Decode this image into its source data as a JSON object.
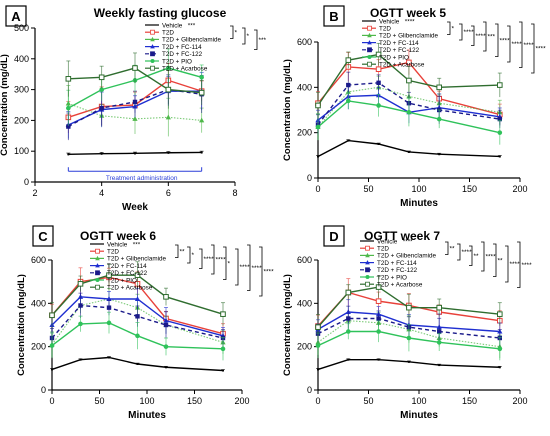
{
  "colors": {
    "Vehicle": "#000000",
    "T2D": "#e8413a",
    "T2D + Glibenclamide": "#4fb84a",
    "T2D + FC-114": "#1f2fd1",
    "T2D + FC-122": "#1a1a8a",
    "T2D + PIO": "#2fc25a",
    "T2D + Acarbose": "#2f6d2f"
  },
  "chart_data": [
    {
      "type": "line",
      "panel_letter": "A",
      "title": "Weekly fasting glucose",
      "xlabel": "Week",
      "ylabel": "Concentration (mg/dL)",
      "xlim": [
        2,
        8
      ],
      "ylim": [
        0,
        500
      ],
      "x_ticks": [
        2,
        4,
        6,
        8
      ],
      "y_ticks": [
        0,
        100,
        200,
        300,
        400,
        500
      ],
      "x": [
        3,
        4,
        5,
        6,
        7
      ],
      "annotation": "Treatment administration",
      "legend": {
        "position": "top-right"
      },
      "series": [
        {
          "name": "Vehicle",
          "values": [
            90,
            92,
            93,
            95,
            96
          ],
          "stat": "***"
        },
        {
          "name": "T2D",
          "values": [
            210,
            245,
            250,
            330,
            295
          ]
        },
        {
          "name": "T2D + Glibenclamide",
          "values": [
            255,
            215,
            205,
            210,
            200
          ]
        },
        {
          "name": "T2D + FC-114",
          "values": [
            185,
            235,
            245,
            295,
            295
          ]
        },
        {
          "name": "T2D + FC-122",
          "values": [
            180,
            240,
            260,
            300,
            285
          ]
        },
        {
          "name": "T2D + PIO",
          "values": [
            240,
            300,
            330,
            370,
            340
          ]
        },
        {
          "name": "T2D + Acarbose",
          "values": [
            335,
            340,
            370,
            300,
            290
          ]
        }
      ],
      "comparison_stats": [
        "*",
        "*",
        "***"
      ]
    },
    {
      "type": "line",
      "panel_letter": "B",
      "title": "OGTT week 5",
      "xlabel": "Minutes",
      "ylabel": "Concentration (mg/dL)",
      "xlim": [
        0,
        200
      ],
      "ylim": [
        0,
        600
      ],
      "x_ticks": [
        0,
        50,
        100,
        150,
        200
      ],
      "y_ticks": [
        0,
        200,
        400,
        600
      ],
      "x": [
        0,
        30,
        60,
        90,
        120,
        180
      ],
      "legend": {
        "position": "top-right"
      },
      "series": [
        {
          "name": "Vehicle",
          "values": [
            95,
            165,
            150,
            115,
            105,
            95
          ],
          "stat": "****"
        },
        {
          "name": "T2D",
          "values": [
            330,
            490,
            480,
            510,
            350,
            280
          ]
        },
        {
          "name": "T2D + Glibenclamide",
          "values": [
            225,
            380,
            400,
            360,
            330,
            290
          ]
        },
        {
          "name": "T2D + FC-114",
          "values": [
            255,
            360,
            365,
            290,
            310,
            270
          ]
        },
        {
          "name": "T2D + FC-122",
          "values": [
            235,
            410,
            420,
            330,
            300,
            260
          ]
        },
        {
          "name": "T2D + PIO",
          "values": [
            225,
            340,
            320,
            290,
            260,
            200
          ]
        },
        {
          "name": "T2D + Acarbose",
          "values": [
            320,
            520,
            545,
            430,
            400,
            410
          ]
        }
      ],
      "comparison_stats": [
        "*",
        "****",
        "****",
        "***",
        "****",
        "****",
        "****",
        "****"
      ]
    },
    {
      "type": "line",
      "panel_letter": "C",
      "title": "OGTT week 6",
      "xlabel": "Minutes",
      "ylabel": "Concentration (mg/dL)",
      "xlim": [
        0,
        200
      ],
      "ylim": [
        0,
        600
      ],
      "x_ticks": [
        0,
        50,
        100,
        150,
        200
      ],
      "y_ticks": [
        0,
        200,
        400,
        600
      ],
      "x": [
        0,
        30,
        60,
        90,
        120,
        180
      ],
      "legend": {
        "position": "top-right"
      },
      "series": [
        {
          "name": "Vehicle",
          "values": [
            95,
            140,
            150,
            120,
            105,
            90
          ],
          "stat": "***"
        },
        {
          "name": "T2D",
          "values": [
            345,
            500,
            520,
            490,
            330,
            260
          ]
        },
        {
          "name": "T2D + Glibenclamide",
          "values": [
            210,
            390,
            420,
            380,
            300,
            220
          ]
        },
        {
          "name": "T2D + FC-114",
          "values": [
            300,
            430,
            420,
            420,
            320,
            250
          ]
        },
        {
          "name": "T2D + FC-122",
          "values": [
            240,
            390,
            380,
            340,
            300,
            240
          ]
        },
        {
          "name": "T2D + PIO",
          "values": [
            205,
            305,
            310,
            250,
            200,
            190
          ]
        },
        {
          "name": "T2D + Acarbose",
          "values": [
            345,
            490,
            530,
            530,
            430,
            350
          ]
        }
      ],
      "comparison_stats": [
        "**",
        "*",
        "****",
        "****",
        "*",
        "****",
        "****",
        "****"
      ]
    },
    {
      "type": "line",
      "panel_letter": "D",
      "title": "OGTT week 7",
      "xlabel": "Minutes",
      "ylabel": "Concentration (mg/dL)",
      "xlim": [
        0,
        200
      ],
      "ylim": [
        0,
        600
      ],
      "x_ticks": [
        0,
        50,
        100,
        150,
        200
      ],
      "y_ticks": [
        0,
        200,
        400,
        600
      ],
      "x": [
        0,
        30,
        60,
        90,
        120,
        180
      ],
      "legend": {
        "position": "top-right"
      },
      "series": [
        {
          "name": "Vehicle",
          "values": [
            95,
            140,
            140,
            130,
            115,
            105
          ],
          "stat": "****"
        },
        {
          "name": "T2D",
          "values": [
            295,
            450,
            410,
            390,
            360,
            320
          ]
        },
        {
          "name": "T2D + Glibenclamide",
          "values": [
            220,
            320,
            310,
            280,
            240,
            200
          ]
        },
        {
          "name": "T2D + FC-114",
          "values": [
            280,
            360,
            350,
            300,
            290,
            270
          ]
        },
        {
          "name": "T2D + FC-122",
          "values": [
            260,
            330,
            330,
            290,
            270,
            240
          ]
        },
        {
          "name": "T2D + PIO",
          "values": [
            205,
            270,
            270,
            240,
            220,
            190
          ]
        },
        {
          "name": "T2D + Acarbose",
          "values": [
            290,
            450,
            475,
            380,
            380,
            350
          ]
        }
      ],
      "comparison_stats": [
        "**",
        "****",
        "**",
        "****",
        "**",
        "****",
        "****"
      ]
    }
  ]
}
